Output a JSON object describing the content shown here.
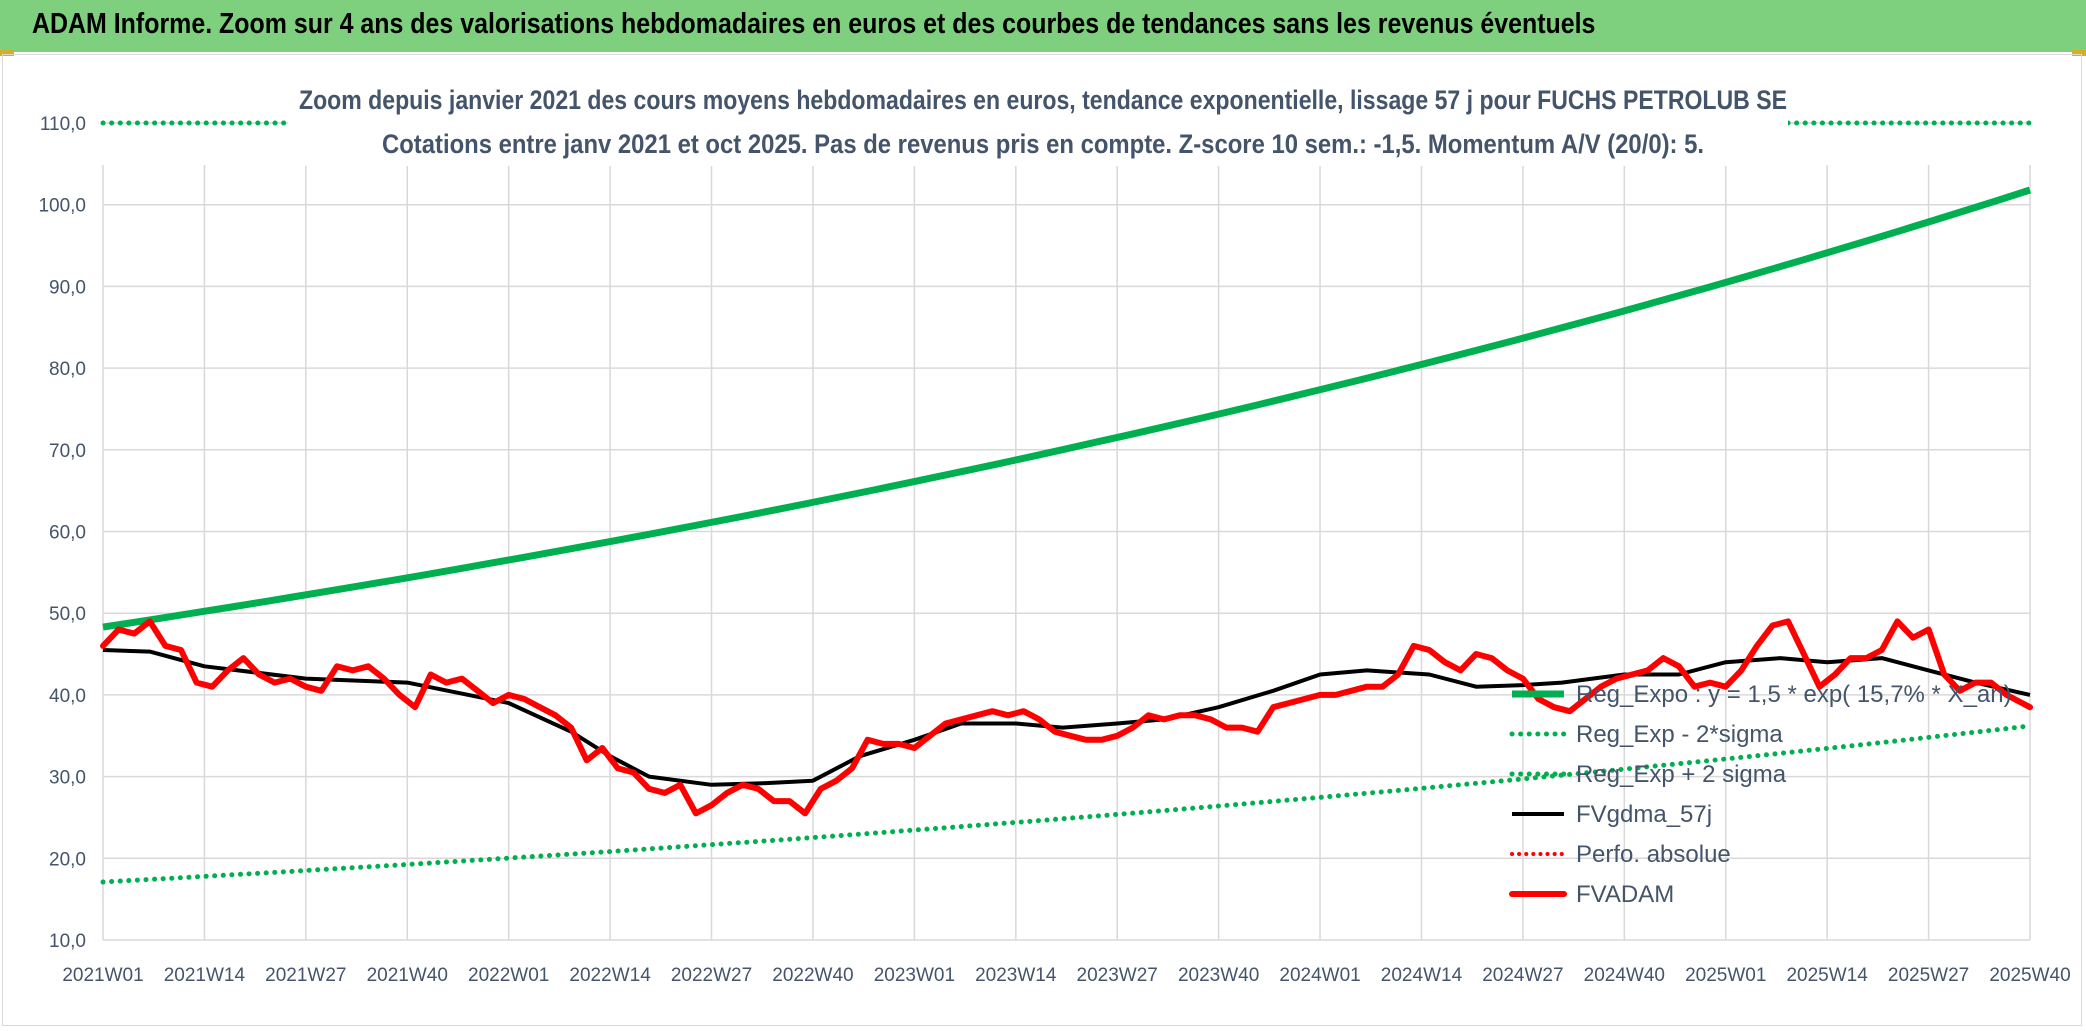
{
  "header": {
    "title": "ADAM Informe. Zoom sur 4 ans des valorisations hebdomadaires en euros et des courbes de tendances sans les revenus éventuels"
  },
  "colors": {
    "header_bg": "#7ed07f",
    "green": "#00b050",
    "black": "#000000",
    "red": "#ff0000",
    "text": "#44546a",
    "grid": "#d9d9d9"
  },
  "chart_data": {
    "type": "line",
    "title": "Zoom depuis janvier 2021 des cours moyens hebdomadaires en euros, tendance exponentielle, lissage 57 j pour FUCHS PETROLUB SE",
    "subtitle": "Cotations entre janv 2021 et oct 2025. Pas de revenus pris en compte. Z-score 10 sem.: -1,5. Momentum A/V (20/0): 5.",
    "xlabel": "",
    "ylabel": "",
    "ylim": [
      10,
      110
    ],
    "yticks": [
      "10,0",
      "20,0",
      "30,0",
      "40,0",
      "50,0",
      "60,0",
      "70,0",
      "80,0",
      "90,0",
      "100,0",
      "110,0"
    ],
    "x_tick_labels": [
      "2021W01",
      "2021W14",
      "2021W27",
      "2021W40",
      "2022W01",
      "2022W14",
      "2022W27",
      "2022W40",
      "2023W01",
      "2023W14",
      "2023W27",
      "2023W40",
      "2024W01",
      "2024W14",
      "2024W27",
      "2024W40",
      "2025W01",
      "2025W14",
      "2025W27",
      "2025W40"
    ],
    "legend": [
      "Reg_Expo : y = 1,5 * exp( 15,7% * X_an)",
      "Reg_Exp - 2*sigma",
      "Reg_Exp + 2 sigma",
      "FVgdma_57j",
      "Perfo. absolue",
      "FVADAM"
    ],
    "series": [
      {
        "name": "Reg_Expo : y = 1,5 * exp( 15,7% * X_an)",
        "style": "solid-green",
        "x": [
          0,
          247
        ],
        "values": [
          48.3,
          101.8
        ],
        "note": "exponential"
      },
      {
        "name": "Reg_Exp - 2*sigma",
        "style": "dotted-green",
        "x": [
          0,
          247
        ],
        "values": [
          17.1,
          36.2
        ],
        "note": "exponential"
      },
      {
        "name": "Reg_Exp + 2 sigma",
        "style": "dotted-green",
        "x": [
          0,
          247
        ],
        "values": [
          110,
          110
        ],
        "note": "clipped at axis top"
      },
      {
        "name": "FVgdma_57j",
        "style": "solid-black",
        "x": [
          0,
          6,
          13,
          26,
          39,
          52,
          60,
          65,
          70,
          78,
          85,
          91,
          97,
          104,
          110,
          117,
          123,
          130,
          136,
          143,
          150,
          156,
          162,
          170,
          176,
          182,
          187,
          195,
          202,
          208,
          215,
          221,
          228,
          234,
          240,
          247
        ],
        "values": [
          45.5,
          45.3,
          43.5,
          42.0,
          41.5,
          39.0,
          35.5,
          32.5,
          30.0,
          29.0,
          29.2,
          29.5,
          32.5,
          34.5,
          36.5,
          36.5,
          36.0,
          36.5,
          37.0,
          38.5,
          40.5,
          42.5,
          43.0,
          42.5,
          41.0,
          41.2,
          41.5,
          42.5,
          42.5,
          44.0,
          44.5,
          44.0,
          44.5,
          43.0,
          41.5,
          40.0
        ]
      },
      {
        "name": "Perfo. absolue",
        "style": "dotted-red",
        "x": [],
        "values": []
      },
      {
        "name": "FVADAM",
        "style": "thick-red",
        "x": [
          0,
          2,
          4,
          6,
          8,
          10,
          12,
          14,
          16,
          18,
          20,
          22,
          24,
          26,
          28,
          30,
          32,
          34,
          36,
          38,
          40,
          42,
          44,
          46,
          48,
          50,
          52,
          54,
          56,
          58,
          60,
          62,
          64,
          66,
          68,
          70,
          72,
          74,
          76,
          78,
          80,
          82,
          84,
          86,
          88,
          90,
          92,
          94,
          96,
          98,
          100,
          102,
          104,
          106,
          108,
          110,
          112,
          114,
          116,
          118,
          120,
          122,
          124,
          126,
          128,
          130,
          132,
          134,
          136,
          138,
          140,
          142,
          144,
          146,
          148,
          150,
          152,
          154,
          156,
          158,
          160,
          162,
          164,
          166,
          168,
          170,
          172,
          174,
          176,
          178,
          180,
          182,
          184,
          186,
          188,
          190,
          192,
          194,
          196,
          198,
          200,
          202,
          204,
          206,
          208,
          210,
          212,
          214,
          216,
          218,
          220,
          222,
          224,
          226,
          228,
          230,
          232,
          234,
          236,
          238,
          240,
          242,
          244,
          246,
          247
        ],
        "values": [
          46.0,
          48.0,
          47.5,
          49.0,
          46.0,
          45.5,
          41.5,
          41.0,
          43.0,
          44.5,
          42.5,
          41.5,
          42.0,
          41.0,
          40.5,
          43.5,
          43.0,
          43.5,
          42.0,
          40.0,
          38.5,
          42.5,
          41.5,
          42.0,
          40.5,
          39.0,
          40.0,
          39.5,
          38.5,
          37.5,
          36.0,
          32.0,
          33.5,
          31.0,
          30.5,
          28.5,
          28.0,
          29.0,
          25.5,
          26.5,
          28.0,
          29.0,
          28.5,
          27.0,
          27.0,
          25.5,
          28.5,
          29.5,
          31.0,
          34.5,
          34.0,
          34.0,
          33.5,
          35.0,
          36.5,
          37.0,
          37.5,
          38.0,
          37.5,
          38.0,
          37.0,
          35.5,
          35.0,
          34.5,
          34.5,
          35.0,
          36.0,
          37.5,
          37.0,
          37.5,
          37.5,
          37.0,
          36.0,
          36.0,
          35.5,
          38.5,
          39.0,
          39.5,
          40.0,
          40.0,
          40.5,
          41.0,
          41.0,
          42.5,
          46.0,
          45.5,
          44.0,
          43.0,
          45.0,
          44.5,
          43.0,
          42.0,
          39.5,
          38.5,
          38.0,
          39.5,
          41.0,
          42.0,
          42.5,
          43.0,
          44.5,
          43.5,
          41.0,
          41.5,
          41.0,
          43.0,
          46.0,
          48.5,
          49.0,
          45.0,
          41.0,
          42.5,
          44.5,
          44.5,
          45.5,
          49.0,
          47.0,
          48.0,
          42.5,
          40.5,
          41.5,
          41.5,
          40.0,
          39.0,
          38.5
        ]
      }
    ]
  }
}
